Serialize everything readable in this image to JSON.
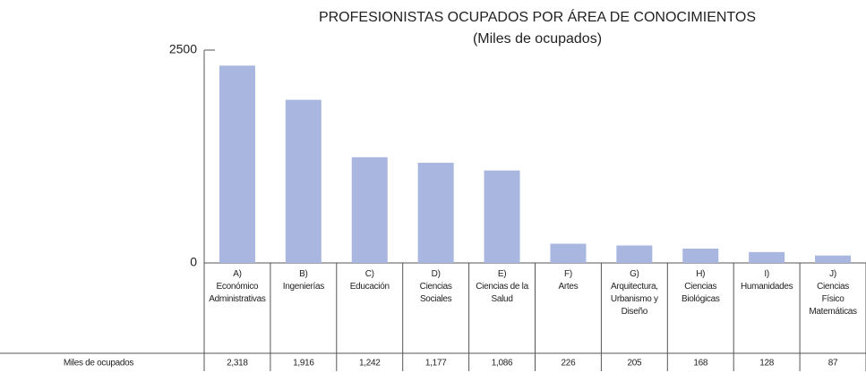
{
  "chart_data": {
    "type": "bar",
    "title": "PROFESIONISTAS OCUPADOS POR ÁREA DE CONOCIMIENTOS",
    "subtitle": "(Miles de ocupados)",
    "categories": [
      "A)\nEconómico\nAdministrativas",
      "B)\nIngenierías",
      "C)\nEducación",
      "D)\nCiencias\nSociales",
      "E)\nCiencias de la\nSalud",
      "F)\nArtes",
      "G)\nArquitectura,\nUrbanismo y\nDiseño",
      "H)\nCiencias\nBiológicas",
      "I)\nHumanidades",
      "J)\nCiencias\nFísico\nMatemáticas"
    ],
    "series": [
      {
        "name": "Miles de ocupados",
        "color": "#a9b7e0",
        "values": [
          2318,
          1916,
          1242,
          1177,
          1086,
          226,
          205,
          168,
          128,
          87
        ],
        "value_labels": [
          "2,318",
          "1,916",
          "1,242",
          "1,177",
          "1,086",
          "226",
          "205",
          "168",
          "128",
          "87"
        ]
      }
    ],
    "ylim": [
      0,
      2500
    ],
    "yticks": [
      0,
      2500
    ]
  }
}
